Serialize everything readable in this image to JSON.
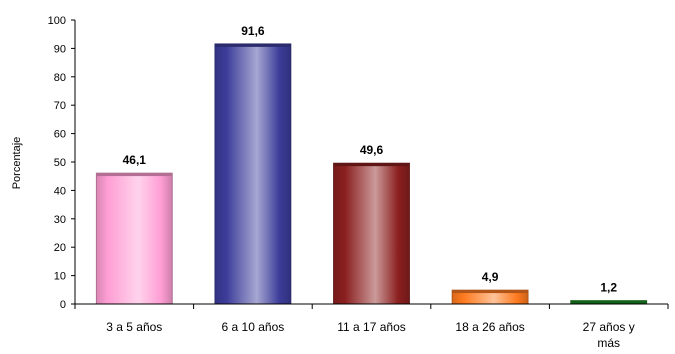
{
  "chart_data": {
    "type": "bar",
    "categories": [
      "3 a 5 años",
      "6 a 10 años",
      "11 a 17 años",
      "18 a 26 años",
      "27 años y más"
    ],
    "category_label_lines": [
      [
        "3 a 5 años"
      ],
      [
        "6 a 10 años"
      ],
      [
        "11 a 17 años"
      ],
      [
        "18 a 26 años"
      ],
      [
        "27 años y",
        "más"
      ]
    ],
    "values": [
      46.1,
      91.6,
      49.6,
      4.9,
      1.2
    ],
    "value_labels": [
      "46,1",
      "91,6",
      "49,6",
      "4,9",
      "1,2"
    ],
    "colors": [
      "#ff9ed4",
      "#3c3c9a",
      "#8b1f1f",
      "#ff7a1f",
      "#1a8a22"
    ],
    "ylabel": "Porcentaje",
    "ylim": [
      0,
      100
    ],
    "yticks": [
      0,
      10,
      20,
      30,
      40,
      50,
      60,
      70,
      80,
      90,
      100
    ],
    "grid": false,
    "legend": "none"
  }
}
